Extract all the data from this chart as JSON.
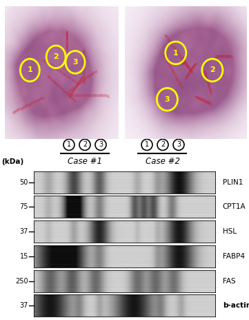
{
  "protein_labels": [
    "PLIN1",
    "CPT1A",
    "HSL",
    "FABP4",
    "FAS",
    "b-actin"
  ],
  "kda_labels": [
    "50",
    "75",
    "37",
    "15",
    "250",
    "37"
  ],
  "case1_label": "Case #1",
  "case2_label": "Case #2",
  "bg_color": "#ffffff"
}
